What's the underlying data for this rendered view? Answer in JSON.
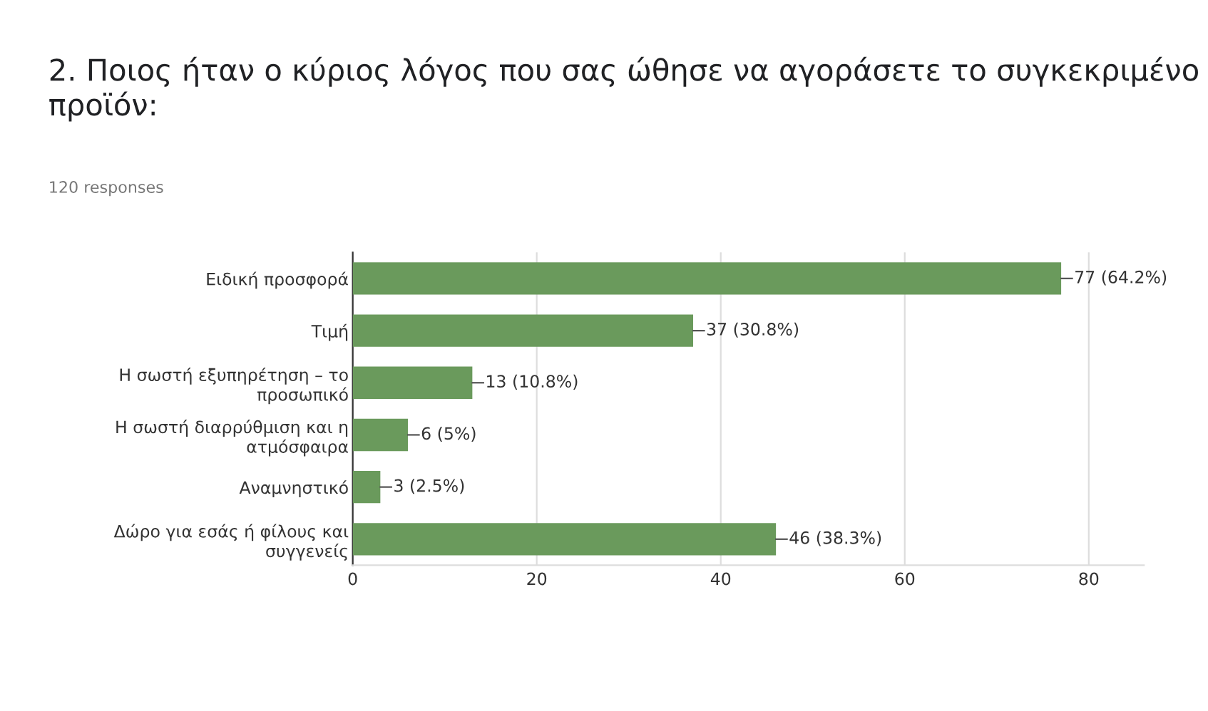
{
  "chart_data": {
    "type": "bar",
    "orientation": "horizontal",
    "title": "2. Ποιος ήταν ο κύριος λόγος που σας ώθησε να αγοράσετε το συγκεκριμένο προϊόν:",
    "subtitle": "120 responses",
    "categories": [
      "Ειδική προσφορά",
      "Τιμή",
      "Η σωστή εξυπηρέτηση – το\nπροσωπικό",
      "Η σωστή διαρρύθμιση και η\nατμόσφαιρα",
      "Αναμνηστικό",
      "Δώρο για εσάς ή φίλους και\nσυγγενείς"
    ],
    "values": [
      77,
      37,
      13,
      6,
      3,
      46
    ],
    "value_labels": [
      "77 (64.2%)",
      "37 (30.8%)",
      "13 (10.8%)",
      "6 (5%)",
      "3 (2.5%)",
      "46 (38.3%)"
    ],
    "color": "#6a9a5c",
    "xlim": [
      0,
      86
    ],
    "xticks": [
      0,
      20,
      40,
      60,
      80
    ],
    "grid": "x"
  }
}
